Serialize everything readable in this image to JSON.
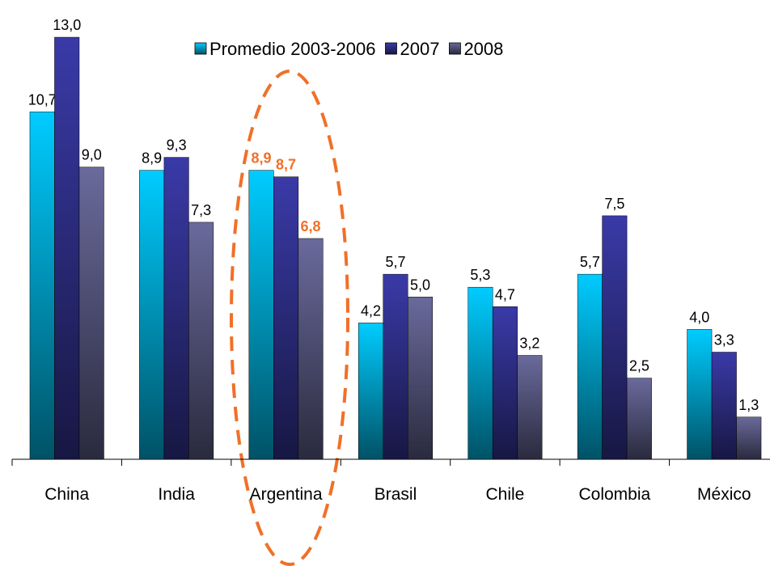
{
  "chart_data": {
    "type": "bar",
    "categories": [
      "China",
      "India",
      "Argentina",
      "Brasil",
      "Chile",
      "Colombia",
      "México"
    ],
    "series": [
      {
        "name": "Promedio 2003-2006",
        "color": "#00ccff",
        "values": [
          10.7,
          8.9,
          8.9,
          4.2,
          5.3,
          5.7,
          4.0
        ],
        "value_labels": [
          "10,7",
          "8,9",
          "8,9",
          "4,2",
          "5,3",
          "5,7",
          "4,0"
        ]
      },
      {
        "name": "2007",
        "color": "#3a3aa8",
        "values": [
          13.0,
          9.3,
          8.7,
          5.7,
          4.7,
          7.5,
          3.3
        ],
        "value_labels": [
          "13,0",
          "9,3",
          "8,7",
          "5,7",
          "4,7",
          "7,5",
          "3,3"
        ]
      },
      {
        "name": "2008",
        "color": "#6a6a9c",
        "values": [
          9.0,
          7.3,
          6.8,
          5.0,
          3.2,
          2.5,
          1.3
        ],
        "value_labels": [
          "9,0",
          "7,3",
          "6,8",
          "5,0",
          "3,2",
          "2,5",
          "1,3"
        ]
      }
    ],
    "highlight": {
      "index": 2,
      "color": "#f07028"
    },
    "legend": "top"
  }
}
